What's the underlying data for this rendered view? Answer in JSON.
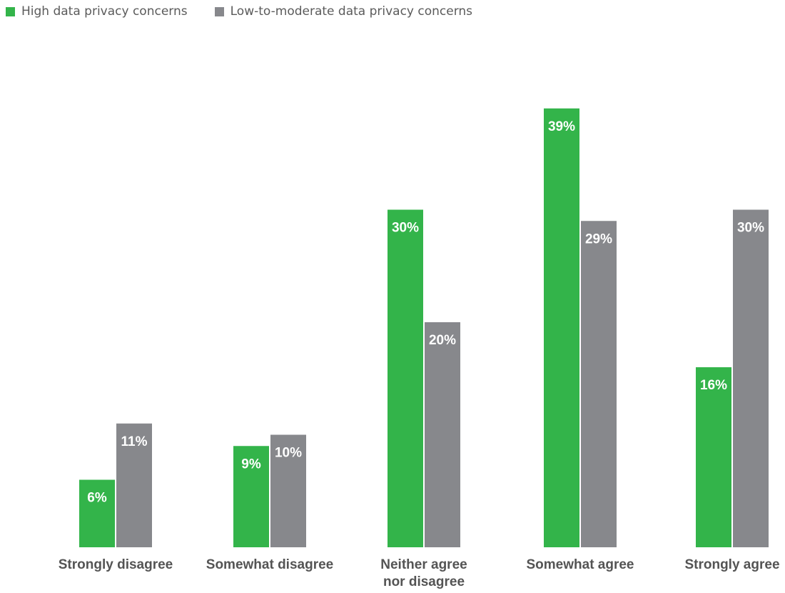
{
  "legend": {
    "items": [
      {
        "label": "High data privacy concerns",
        "color": "#33b44a"
      },
      {
        "label": "Low-to-moderate data privacy concerns",
        "color": "#87888c"
      }
    ]
  },
  "chart_data": {
    "type": "bar",
    "categories": [
      [
        "Strongly disagree"
      ],
      [
        "Somewhat disagree"
      ],
      [
        "Neither agree",
        "nor disagree"
      ],
      [
        "Somewhat agree"
      ],
      [
        "Strongly agree"
      ]
    ],
    "series": [
      {
        "name": "High data privacy concerns",
        "color": "#33b44a",
        "values": [
          6,
          9,
          30,
          39,
          16
        ]
      },
      {
        "name": "Low-to-moderate data privacy concerns",
        "color": "#87888c",
        "values": [
          11,
          10,
          20,
          29,
          30
        ]
      }
    ],
    "value_suffix": "%",
    "xlabel": "",
    "ylabel": "",
    "ylim": [
      0,
      39
    ],
    "grid": false,
    "legend_position": "top-left"
  }
}
